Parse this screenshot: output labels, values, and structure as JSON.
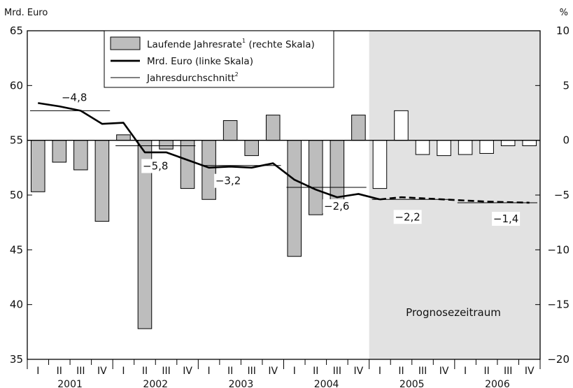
{
  "chart_data": {
    "type": "bar+line",
    "left_axis": {
      "unit_label": "Mrd. Euro",
      "min": 35,
      "max": 65,
      "ticks": [
        35,
        40,
        45,
        50,
        55,
        60,
        65
      ]
    },
    "right_axis": {
      "unit_label": "%",
      "min": -20,
      "max": 10,
      "ticks": [
        -20,
        -15,
        -10,
        -5,
        0,
        5,
        10
      ],
      "tick_labels": [
        "−20",
        "−15",
        "−10",
        "−5",
        "0",
        "5",
        "10"
      ]
    },
    "years": [
      "2001",
      "2002",
      "2003",
      "2004",
      "2005",
      "2006"
    ],
    "quarters": [
      "I",
      "II",
      "III",
      "IV"
    ],
    "legend": [
      {
        "label": "Laufende Jahresrate",
        "sup": "1",
        "suffix": " (rechte  Skala)",
        "kind": "bar"
      },
      {
        "label": "Mrd. Euro (linke Skala)",
        "sup": "",
        "suffix": "",
        "kind": "thick-line"
      },
      {
        "label": "Jahresdurchschnitt",
        "sup": "2",
        "suffix": "",
        "kind": "thin-line"
      }
    ],
    "series": [
      {
        "name": "Laufende Jahresrate",
        "axis": "right",
        "values": [
          -4.7,
          -2.0,
          -2.7,
          -7.4,
          0.5,
          -17.2,
          -0.8,
          -4.4,
          -5.4,
          1.8,
          -1.4,
          2.3,
          -10.6,
          -6.8,
          -5.6,
          2.3,
          -4.4,
          2.7,
          -1.3,
          -1.4,
          -1.3,
          -1.2,
          -0.5,
          -0.5
        ],
        "forecast_from_index": 16
      },
      {
        "name": "Mrd. Euro (linke Skala)",
        "axis": "left",
        "values": [
          58.4,
          58.1,
          57.7,
          56.5,
          56.6,
          53.9,
          53.9,
          53.2,
          52.5,
          52.6,
          52.5,
          52.9,
          51.4,
          50.5,
          49.8,
          50.1,
          49.6,
          49.8,
          49.7,
          49.6,
          49.5,
          49.4,
          49.35,
          49.3
        ],
        "forecast_from_index": 16
      }
    ],
    "annual_averages": [
      {
        "year": "2001",
        "level": 57.7,
        "label": "−4,8"
      },
      {
        "year": "2002",
        "level": 54.5,
        "label": "−5,8"
      },
      {
        "year": "2003",
        "level": 52.7,
        "label": "−3,2"
      },
      {
        "year": "2004",
        "level": 50.7,
        "label": "−2,6"
      },
      {
        "year": "2005",
        "level": 49.6,
        "label": "−2,2"
      },
      {
        "year": "2006",
        "level": 49.3,
        "label": "−1,4"
      }
    ],
    "forecast_region": {
      "label": "Prognosezeitraum",
      "from_year": "2005"
    }
  }
}
